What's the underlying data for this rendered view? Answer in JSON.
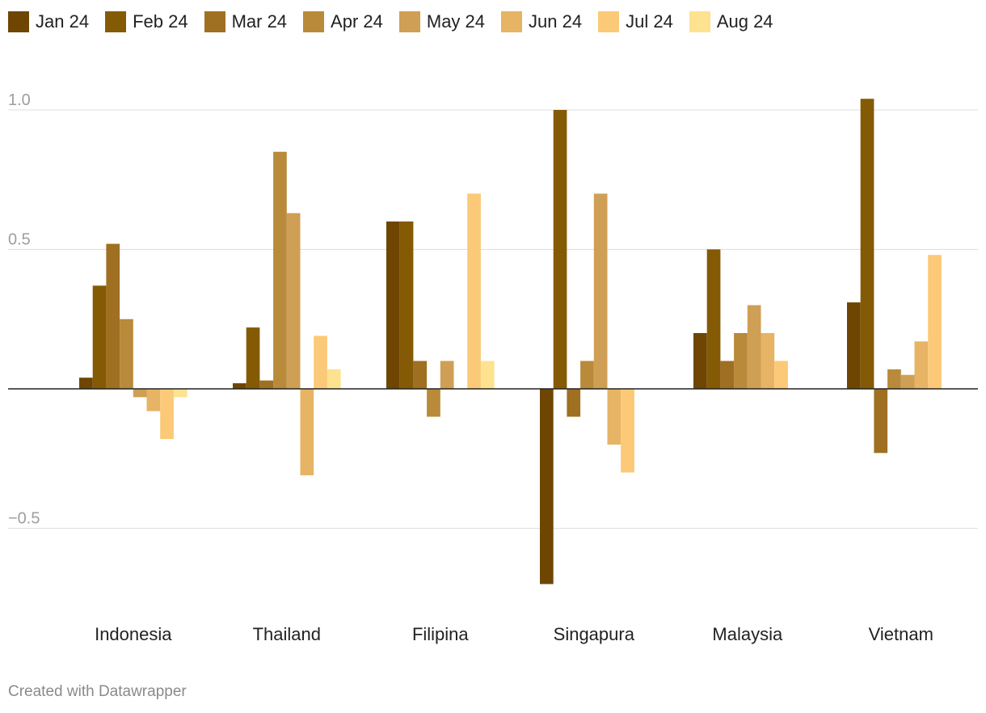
{
  "chart_data": {
    "type": "bar",
    "categories": [
      "Indonesia",
      "Thailand",
      "Filipina",
      "Singapura",
      "Malaysia",
      "Vietnam"
    ],
    "series": [
      {
        "name": "Jan 24",
        "color": "#6e4602",
        "values": [
          0.04,
          0.02,
          0.6,
          -0.7,
          0.2,
          0.31
        ]
      },
      {
        "name": "Feb 24",
        "color": "#845a05",
        "values": [
          0.37,
          0.22,
          0.6,
          1.0,
          0.5,
          1.04
        ]
      },
      {
        "name": "Mar 24",
        "color": "#9f6f22",
        "values": [
          0.52,
          0.03,
          0.1,
          -0.1,
          0.1,
          -0.23
        ]
      },
      {
        "name": "Apr 24",
        "color": "#b88a3a",
        "values": [
          0.25,
          0.85,
          -0.1,
          0.1,
          0.2,
          0.07
        ]
      },
      {
        "name": "May 24",
        "color": "#cf9f55",
        "values": [
          -0.03,
          0.63,
          0.1,
          0.7,
          0.3,
          0.05
        ]
      },
      {
        "name": "Jun 24",
        "color": "#e6b464",
        "values": [
          -0.08,
          -0.31,
          0.0,
          -0.2,
          0.2,
          0.17
        ]
      },
      {
        "name": "Jul 24",
        "color": "#fbc977",
        "values": [
          -0.18,
          0.19,
          0.7,
          -0.3,
          0.1,
          0.48
        ]
      },
      {
        "name": "Aug 24",
        "color": "#fde28f",
        "values": [
          -0.03,
          0.07,
          0.1,
          0.0,
          0.0,
          0.0
        ]
      }
    ],
    "ylim": [
      -0.8,
      1.1
    ],
    "yticks": [
      {
        "value": 1.0,
        "label": "1.0"
      },
      {
        "value": 0.5,
        "label": "0.5"
      },
      {
        "value": -0.5,
        "label": "−0.5"
      }
    ],
    "grid": true,
    "legend_position": "top-left",
    "title": "",
    "xlabel": "",
    "ylabel": ""
  },
  "footer": {
    "credit": "Created with Datawrapper"
  }
}
